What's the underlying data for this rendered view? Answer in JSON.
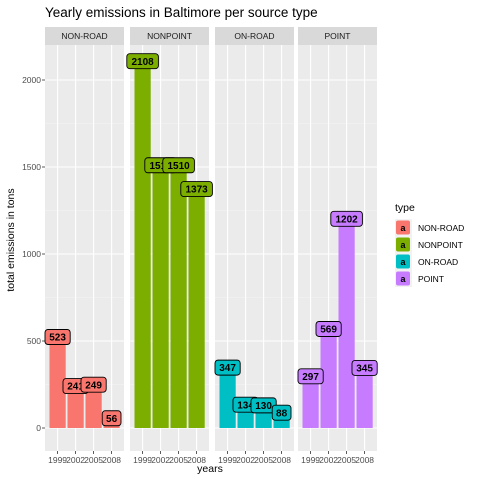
{
  "chart_data": {
    "type": "bar",
    "title": "Yearly emissions in Baltimore per source type",
    "xlabel": "years",
    "ylabel": "total emissions in tons",
    "categories": [
      "1999",
      "2002",
      "2005",
      "2008"
    ],
    "ylim": [
      0,
      2200
    ],
    "yticks": [
      0,
      500,
      1000,
      1500,
      2000
    ],
    "grid": true,
    "legend_title": "type",
    "legend_key_letter": "a",
    "legend_position": "right",
    "panels": [
      {
        "name": "NON-ROAD",
        "color": "#F8766D",
        "values": [
          523,
          241,
          249,
          56
        ],
        "labels": [
          "523",
          "24⁠1",
          "249",
          "56"
        ]
      },
      {
        "name": "NONPOINT",
        "color": "#7CAE00",
        "values": [
          2108,
          1510,
          1510,
          1373
        ],
        "labels": [
          "2108",
          "1510",
          "1510",
          "1373"
        ]
      },
      {
        "name": "ON-ROAD",
        "color": "#00BFC4",
        "values": [
          347,
          134,
          130,
          88
        ],
        "labels": [
          "347",
          "134",
          "130",
          "88"
        ]
      },
      {
        "name": "POINT",
        "color": "#C77CFF",
        "values": [
          297,
          569,
          1202,
          345
        ],
        "labels": [
          "297",
          "569",
          "1202",
          "345"
        ]
      }
    ]
  }
}
